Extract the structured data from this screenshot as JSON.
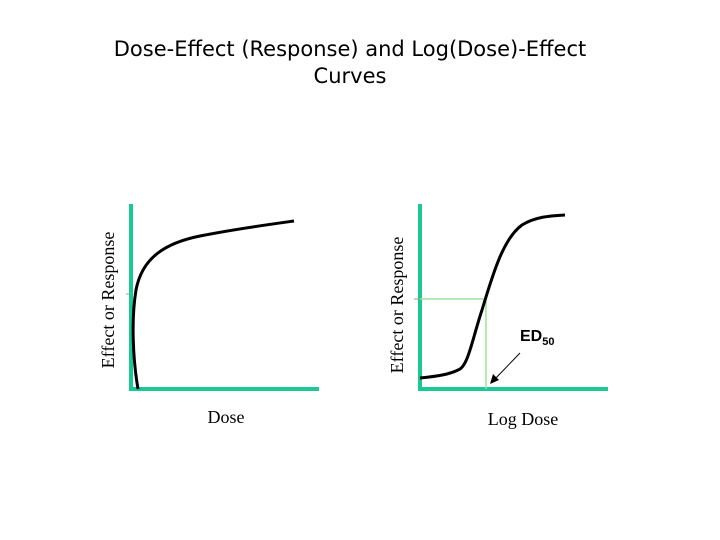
{
  "slide": {
    "title_line1": "Dose-Effect (Response) and Log(Dose)-Effect",
    "title_line2": "Curves"
  },
  "left_plot": {
    "y_label": "Effect or Response",
    "x_label": "Dose"
  },
  "right_plot": {
    "y_label": "Effect or Response",
    "x_label": "Log Dose",
    "annotation_main": "ED",
    "annotation_sub": "50"
  },
  "colors": {
    "axis": "#19c896",
    "guide": "#9be39b",
    "curve": "#000000"
  }
}
